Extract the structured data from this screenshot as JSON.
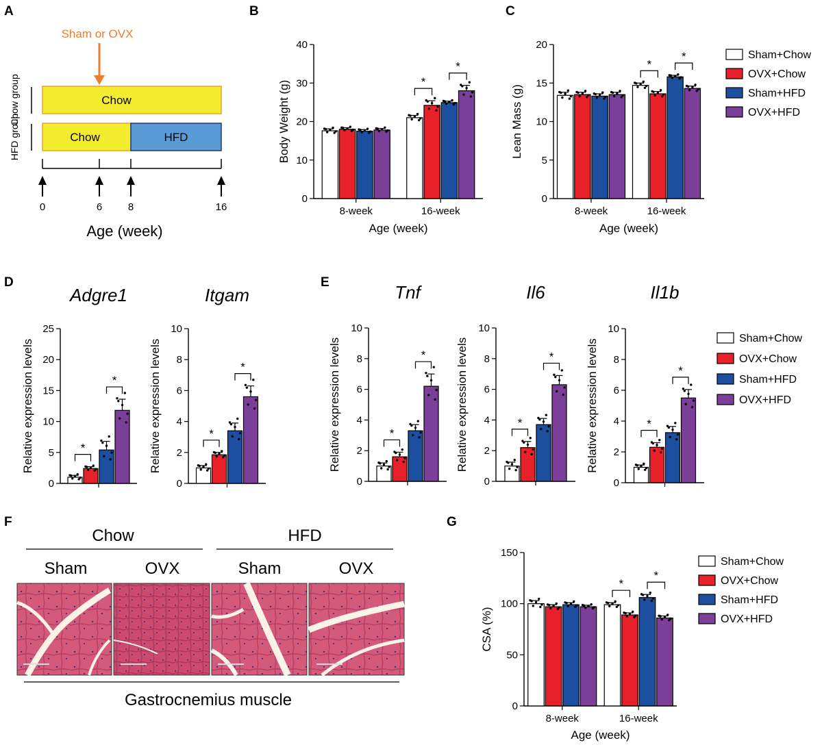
{
  "panel_letters": [
    "A",
    "B",
    "C",
    "D",
    "E",
    "F",
    "G"
  ],
  "colors": {
    "sham_chow": "#ffffff",
    "ovx_chow": "#e8202a",
    "sham_hfd": "#1d4fa0",
    "ovx_hfd": "#7b3f99",
    "chow_bar": "#f3ec2f",
    "hfd_bar": "#5b9bd5",
    "arrow": "#ee7d31"
  },
  "legend": [
    "Sham+Chow",
    "OVX+Chow",
    "Sham+HFD",
    "OVX+HFD"
  ],
  "schematic": {
    "treatment_label": "Sham or OVX",
    "chow_group_label": "Chow group",
    "hfd_group_label": "HFD group",
    "chow_segment": "Chow",
    "hfd_chow_segment": "Chow",
    "hfd_segment": "HFD",
    "timepoints": [
      "0",
      "6",
      "8",
      "16"
    ],
    "axis_title": "Age (week)"
  },
  "histology": {
    "groups": [
      "Chow",
      "HFD"
    ],
    "conditions": [
      "Sham",
      "OVX",
      "Sham",
      "OVX"
    ],
    "caption": "Gastrocnemius muscle"
  },
  "chart_data": [
    {
      "id": "B",
      "type": "bar",
      "ylabel": "Body Weight (g)",
      "xlabel": "Age (week)",
      "ylim": [
        0,
        40
      ],
      "yticks": [
        "0",
        "10",
        "20",
        "30",
        "40"
      ],
      "categories": [
        "8-week",
        "16-week"
      ],
      "series": [
        {
          "name": "Sham+Chow",
          "values": [
            17.6,
            21.0
          ],
          "errors": [
            0.5,
            0.6
          ]
        },
        {
          "name": "OVX+Chow",
          "values": [
            18.0,
            24.2
          ],
          "errors": [
            0.4,
            1.2
          ]
        },
        {
          "name": "Sham+HFD",
          "values": [
            17.5,
            24.9
          ],
          "errors": [
            0.4,
            0.4
          ]
        },
        {
          "name": "OVX+HFD",
          "values": [
            17.8,
            28.0
          ],
          "errors": [
            0.4,
            1.4
          ]
        }
      ],
      "significance": [
        {
          "category": "16-week",
          "pair": [
            0,
            1
          ],
          "label": "*"
        },
        {
          "category": "16-week",
          "pair": [
            2,
            3
          ],
          "label": "*"
        }
      ]
    },
    {
      "id": "C",
      "type": "bar",
      "ylabel": "Lean Mass (g)",
      "xlabel": "Age (week)",
      "ylim": [
        0,
        20
      ],
      "yticks": [
        "0",
        "5",
        "10",
        "15",
        "20"
      ],
      "categories": [
        "8-week",
        "16-week"
      ],
      "series": [
        {
          "name": "Sham+Chow",
          "values": [
            13.4,
            14.7
          ],
          "errors": [
            0.4,
            0.3
          ]
        },
        {
          "name": "OVX+Chow",
          "values": [
            13.5,
            13.6
          ],
          "errors": [
            0.3,
            0.3
          ]
        },
        {
          "name": "Sham+HFD",
          "values": [
            13.3,
            15.8
          ],
          "errors": [
            0.3,
            0.2
          ]
        },
        {
          "name": "OVX+HFD",
          "values": [
            13.5,
            14.3
          ],
          "errors": [
            0.3,
            0.3
          ]
        }
      ],
      "significance": [
        {
          "category": "16-week",
          "pair": [
            0,
            1
          ],
          "label": "*"
        },
        {
          "category": "16-week",
          "pair": [
            2,
            3
          ],
          "label": "*"
        }
      ]
    },
    {
      "id": "D1",
      "type": "bar",
      "title": "Adgre1",
      "ylabel": "Relative expression levels",
      "ylim": [
        0,
        25
      ],
      "yticks": [
        "0",
        "5",
        "10",
        "15",
        "20",
        "25"
      ],
      "categories": [
        ""
      ],
      "series": [
        {
          "name": "Sham+Chow",
          "values": [
            1.0
          ],
          "errors": [
            0.3
          ]
        },
        {
          "name": "OVX+Chow",
          "values": [
            2.4
          ],
          "errors": [
            0.3
          ]
        },
        {
          "name": "Sham+HFD",
          "values": [
            5.4
          ],
          "errors": [
            1.4
          ]
        },
        {
          "name": "OVX+HFD",
          "values": [
            11.8
          ],
          "errors": [
            1.8
          ]
        }
      ],
      "significance": [
        {
          "category": "",
          "pair": [
            0,
            1
          ],
          "label": "*"
        },
        {
          "category": "",
          "pair": [
            2,
            3
          ],
          "label": "*"
        }
      ]
    },
    {
      "id": "D2",
      "type": "bar",
      "title": "Itgam",
      "ylabel": "Relative expression levels",
      "ylim": [
        0,
        10
      ],
      "yticks": [
        "0",
        "2",
        "4",
        "6",
        "8",
        "10"
      ],
      "categories": [
        ""
      ],
      "series": [
        {
          "name": "Sham+Chow",
          "values": [
            1.0
          ],
          "errors": [
            0.15
          ]
        },
        {
          "name": "OVX+Chow",
          "values": [
            1.85
          ],
          "errors": [
            0.15
          ]
        },
        {
          "name": "Sham+HFD",
          "values": [
            3.4
          ],
          "errors": [
            0.5
          ]
        },
        {
          "name": "OVX+HFD",
          "values": [
            5.6
          ],
          "errors": [
            0.7
          ]
        }
      ],
      "significance": [
        {
          "category": "",
          "pair": [
            0,
            1
          ],
          "label": "*"
        },
        {
          "category": "",
          "pair": [
            2,
            3
          ],
          "label": "*"
        }
      ]
    },
    {
      "id": "E1",
      "type": "bar",
      "title": "Tnf",
      "ylabel": "Relative expression levels",
      "ylim": [
        0,
        10
      ],
      "yticks": [
        "0",
        "2",
        "4",
        "6",
        "8",
        "10"
      ],
      "categories": [
        ""
      ],
      "series": [
        {
          "name": "Sham+Chow",
          "values": [
            1.0
          ],
          "errors": [
            0.2
          ]
        },
        {
          "name": "OVX+Chow",
          "values": [
            1.6
          ],
          "errors": [
            0.3
          ]
        },
        {
          "name": "Sham+HFD",
          "values": [
            3.3
          ],
          "errors": [
            0.4
          ]
        },
        {
          "name": "OVX+HFD",
          "values": [
            6.2
          ],
          "errors": [
            0.8
          ]
        }
      ],
      "significance": [
        {
          "category": "",
          "pair": [
            0,
            1
          ],
          "label": "*"
        },
        {
          "category": "",
          "pair": [
            2,
            3
          ],
          "label": "*"
        }
      ]
    },
    {
      "id": "E2",
      "type": "bar",
      "title": "Il6",
      "ylabel": "Relative expression levels",
      "ylim": [
        0,
        10
      ],
      "yticks": [
        "0",
        "2",
        "4",
        "6",
        "8",
        "10"
      ],
      "categories": [
        ""
      ],
      "series": [
        {
          "name": "Sham+Chow",
          "values": [
            1.0
          ],
          "errors": [
            0.25
          ]
        },
        {
          "name": "OVX+Chow",
          "values": [
            2.2
          ],
          "errors": [
            0.4
          ]
        },
        {
          "name": "Sham+HFD",
          "values": [
            3.7
          ],
          "errors": [
            0.4
          ]
        },
        {
          "name": "OVX+HFD",
          "values": [
            6.3
          ],
          "errors": [
            0.6
          ]
        }
      ],
      "significance": [
        {
          "category": "",
          "pair": [
            0,
            1
          ],
          "label": "*"
        },
        {
          "category": "",
          "pair": [
            2,
            3
          ],
          "label": "*"
        }
      ]
    },
    {
      "id": "E3",
      "type": "bar",
      "title": "Il1b",
      "ylabel": "Relative expression levels",
      "ylim": [
        0,
        10
      ],
      "yticks": [
        "0",
        "2",
        "4",
        "6",
        "8",
        "10"
      ],
      "categories": [
        ""
      ],
      "series": [
        {
          "name": "Sham+Chow",
          "values": [
            1.0
          ],
          "errors": [
            0.15
          ]
        },
        {
          "name": "OVX+Chow",
          "values": [
            2.3
          ],
          "errors": [
            0.3
          ]
        },
        {
          "name": "Sham+HFD",
          "values": [
            3.25
          ],
          "errors": [
            0.4
          ]
        },
        {
          "name": "OVX+HFD",
          "values": [
            5.5
          ],
          "errors": [
            0.55
          ]
        }
      ],
      "significance": [
        {
          "category": "",
          "pair": [
            0,
            1
          ],
          "label": "*"
        },
        {
          "category": "",
          "pair": [
            2,
            3
          ],
          "label": "*"
        }
      ]
    },
    {
      "id": "G",
      "type": "bar",
      "ylabel": "CSA (%)",
      "xlabel": "Age (week)",
      "ylim": [
        0,
        150
      ],
      "yticks": [
        "0",
        "50",
        "100",
        "150"
      ],
      "categories": [
        "8-week",
        "16-week"
      ],
      "series": [
        {
          "name": "Sham+Chow",
          "values": [
            100,
            99
          ],
          "errors": [
            3,
            2
          ]
        },
        {
          "name": "OVX+Chow",
          "values": [
            97,
            89
          ],
          "errors": [
            2,
            2
          ]
        },
        {
          "name": "Sham+HFD",
          "values": [
            99,
            106
          ],
          "errors": [
            2,
            3
          ]
        },
        {
          "name": "OVX+HFD",
          "values": [
            97,
            86
          ],
          "errors": [
            1.5,
            2
          ]
        }
      ],
      "significance": [
        {
          "category": "16-week",
          "pair": [
            0,
            1
          ],
          "label": "*"
        },
        {
          "category": "16-week",
          "pair": [
            2,
            3
          ],
          "label": "*"
        }
      ]
    }
  ]
}
